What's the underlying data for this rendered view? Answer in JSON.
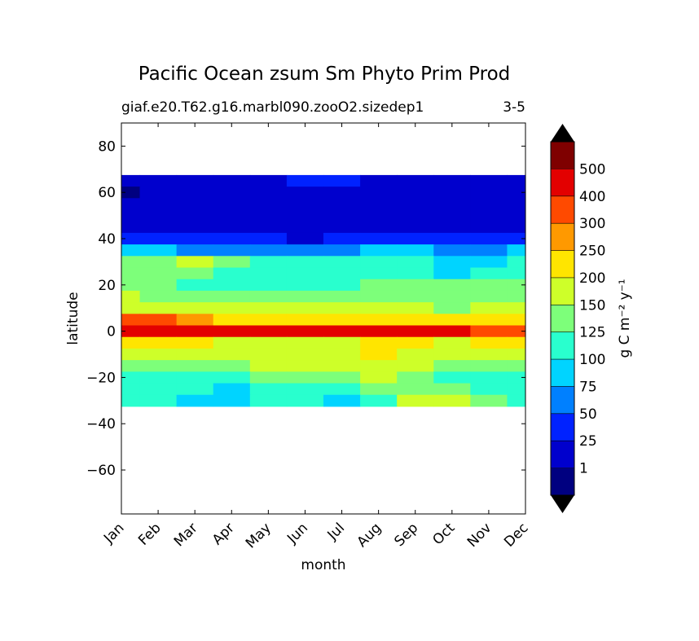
{
  "chart_data": {
    "type": "contour",
    "title": "Pacific Ocean zsum Sm Phyto Prim Prod",
    "subtitle": "giaf.e20.T62.g16.marbl090.zooO2.sizedep1",
    "subtitle_right": "3-5",
    "x_label": "month",
    "y_label": "latitude",
    "categories": [
      "Jan",
      "Feb",
      "Mar",
      "Apr",
      "May",
      "Jun",
      "Jul",
      "Aug",
      "Sep",
      "Oct",
      "Nov",
      "Dec"
    ],
    "ylim": [
      -79,
      90
    ],
    "yticks": [
      80,
      60,
      40,
      20,
      0,
      {
        "value": -20,
        "label": "−20"
      },
      {
        "value": -40,
        "label": "−40"
      },
      {
        "value": -60,
        "label": "−60"
      }
    ],
    "latitudes": [
      65,
      60,
      55,
      50,
      45,
      40,
      35,
      30,
      25,
      20,
      15,
      10,
      5,
      0,
      -5,
      -10,
      -15,
      -20,
      -25,
      -30
    ],
    "values": [
      [
        15,
        15,
        15,
        15,
        20,
        40,
        30,
        20,
        15,
        15,
        15,
        15
      ],
      [
        0.5,
        5,
        10,
        10,
        15,
        15,
        15,
        10,
        10,
        10,
        10,
        5
      ],
      [
        20,
        20,
        20,
        20,
        20,
        15,
        20,
        20,
        20,
        20,
        20,
        20
      ],
      [
        20,
        20,
        20,
        20,
        20,
        20,
        20,
        20,
        20,
        20,
        20,
        20
      ],
      [
        20,
        20,
        20,
        20,
        20,
        20,
        20,
        20,
        20,
        20,
        20,
        20
      ],
      [
        40,
        30,
        30,
        30,
        30,
        20,
        30,
        40,
        40,
        40,
        45,
        45
      ],
      [
        90,
        80,
        60,
        60,
        60,
        50,
        60,
        80,
        80,
        60,
        60,
        90
      ],
      [
        130,
        140,
        150,
        130,
        120,
        110,
        110,
        110,
        100,
        80,
        80,
        110
      ],
      [
        130,
        140,
        140,
        120,
        110,
        110,
        110,
        120,
        110,
        90,
        110,
        120
      ],
      [
        140,
        130,
        115,
        110,
        110,
        115,
        120,
        130,
        130,
        130,
        140,
        140
      ],
      [
        150,
        145,
        140,
        140,
        135,
        135,
        140,
        140,
        140,
        130,
        140,
        145
      ],
      [
        180,
        160,
        160,
        150,
        150,
        150,
        160,
        160,
        150,
        140,
        150,
        150
      ],
      [
        300,
        300,
        250,
        220,
        210,
        200,
        210,
        220,
        220,
        200,
        200,
        210
      ],
      [
        450,
        450,
        420,
        420,
        450,
        450,
        450,
        420,
        420,
        400,
        380,
        350
      ],
      [
        220,
        210,
        200,
        170,
        160,
        160,
        170,
        200,
        200,
        180,
        200,
        200
      ],
      [
        160,
        160,
        150,
        150,
        150,
        170,
        180,
        210,
        190,
        180,
        160,
        150
      ],
      [
        140,
        140,
        140,
        140,
        150,
        160,
        170,
        170,
        160,
        140,
        140,
        140
      ],
      [
        110,
        110,
        110,
        115,
        130,
        140,
        140,
        150,
        140,
        120,
        115,
        120
      ],
      [
        110,
        105,
        100,
        95,
        110,
        110,
        110,
        130,
        140,
        130,
        120,
        115
      ],
      [
        110,
        110,
        90,
        90,
        105,
        110,
        90,
        100,
        150,
        180,
        130,
        115
      ]
    ],
    "levels": [
      1,
      25,
      50,
      75,
      100,
      125,
      150,
      200,
      250,
      300,
      400,
      500
    ],
    "colors": [
      "#000080",
      "#0000cd",
      "#0022ff",
      "#0080ff",
      "#00d4ff",
      "#29ffce",
      "#7dff7a",
      "#ceff29",
      "#ffe500",
      "#ff9900",
      "#ff4a00",
      "#e30000",
      "#7f0000"
    ],
    "colorbar_label": "g C m⁻² y⁻¹"
  }
}
